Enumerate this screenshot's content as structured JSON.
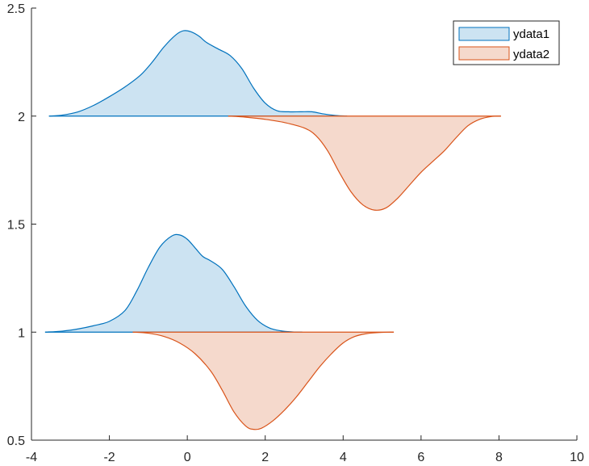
{
  "chart_data": {
    "type": "area",
    "title": "",
    "xlabel": "",
    "ylabel": "",
    "xlim": [
      -4,
      10
    ],
    "ylim": [
      0.5,
      2.5
    ],
    "xticks": [
      -4,
      -2,
      0,
      2,
      4,
      6,
      8,
      10
    ],
    "xtick_labels": [
      "-4",
      "-2",
      "0",
      "2",
      "4",
      "6",
      "8",
      "10"
    ],
    "yticks": [
      0.5,
      1,
      1.5,
      2,
      2.5
    ],
    "ytick_labels": [
      "0.5",
      "1",
      "1.5",
      "2",
      "2.5"
    ],
    "grid": false,
    "legend_position": "top-right",
    "series": [
      {
        "name": "ydata1",
        "fill_color": "#cce3f2",
        "line_color": "#0072bd",
        "groups": [
          {
            "baseline": 2,
            "direction": "up",
            "x": [
              -3.55,
              -3.2,
              -2.8,
              -2.4,
              -2.0,
              -1.6,
              -1.2,
              -0.9,
              -0.6,
              -0.3,
              -0.1,
              0.1,
              0.3,
              0.5,
              0.8,
              1.1,
              1.4,
              1.7,
              2.0,
              2.3,
              2.6,
              2.9,
              3.2,
              3.5,
              3.8,
              4.1
            ],
            "y": [
              2.0,
              2.005,
              2.02,
              2.05,
              2.09,
              2.135,
              2.19,
              2.25,
              2.32,
              2.375,
              2.395,
              2.39,
              2.37,
              2.34,
              2.31,
              2.28,
              2.22,
              2.13,
              2.06,
              2.025,
              2.02,
              2.02,
              2.02,
              2.01,
              2.003,
              2.0
            ]
          },
          {
            "baseline": 1,
            "direction": "up",
            "x": [
              -3.65,
              -3.2,
              -2.8,
              -2.4,
              -2.0,
              -1.6,
              -1.3,
              -1.0,
              -0.7,
              -0.4,
              -0.2,
              0.0,
              0.2,
              0.4,
              0.6,
              0.9,
              1.2,
              1.5,
              1.8,
              2.1,
              2.4,
              2.7,
              2.95
            ],
            "y": [
              1.0,
              1.005,
              1.015,
              1.03,
              1.05,
              1.1,
              1.19,
              1.3,
              1.395,
              1.445,
              1.45,
              1.43,
              1.39,
              1.35,
              1.33,
              1.29,
              1.21,
              1.12,
              1.055,
              1.02,
              1.006,
              1.001,
              1.0
            ]
          }
        ]
      },
      {
        "name": "ydata2",
        "fill_color": "#f5d9cc",
        "line_color": "#d95319",
        "groups": [
          {
            "baseline": 2,
            "direction": "down",
            "x": [
              1.05,
              1.5,
              2.0,
              2.5,
              3.0,
              3.3,
              3.6,
              3.9,
              4.2,
              4.5,
              4.8,
              5.1,
              5.4,
              5.7,
              6.0,
              6.3,
              6.6,
              6.9,
              7.2,
              7.5,
              7.8,
              8.05
            ],
            "y": [
              2.0,
              1.995,
              1.985,
              1.97,
              1.945,
              1.91,
              1.84,
              1.74,
              1.65,
              1.59,
              1.565,
              1.575,
              1.62,
              1.68,
              1.74,
              1.79,
              1.84,
              1.9,
              1.955,
              1.985,
              1.998,
              2.0
            ]
          },
          {
            "baseline": 1,
            "direction": "down",
            "x": [
              -1.4,
              -1.0,
              -0.6,
              -0.2,
              0.2,
              0.6,
              0.9,
              1.2,
              1.5,
              1.7,
              1.9,
              2.2,
              2.5,
              2.8,
              3.1,
              3.4,
              3.7,
              4.0,
              4.3,
              4.6,
              4.9,
              5.2,
              5.3
            ],
            "y": [
              1.0,
              0.995,
              0.98,
              0.95,
              0.9,
              0.82,
              0.73,
              0.63,
              0.565,
              0.55,
              0.555,
              0.59,
              0.64,
              0.7,
              0.77,
              0.84,
              0.9,
              0.95,
              0.98,
              0.993,
              0.998,
              1.0,
              1.0
            ]
          }
        ]
      }
    ]
  }
}
